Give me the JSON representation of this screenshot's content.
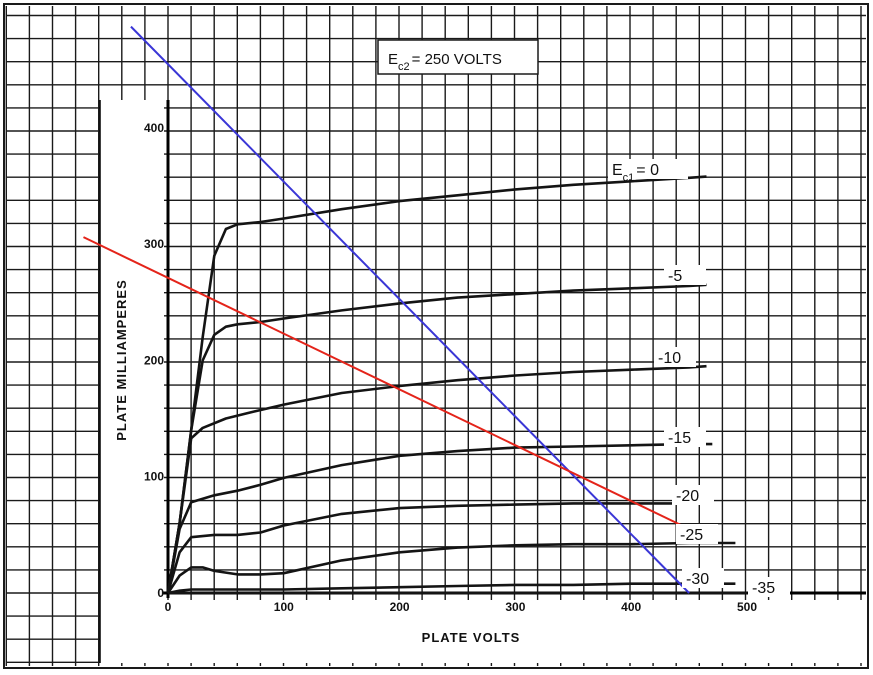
{
  "chart_data": {
    "type": "line",
    "title": "",
    "xlabel": "PLATE VOLTS",
    "ylabel": "PLATE MILLIAMPERES",
    "xlim": [
      0,
      500
    ],
    "ylim": [
      0,
      400
    ],
    "x_ticks": [
      0,
      100,
      200,
      300,
      400,
      500
    ],
    "x_tick_labels": [
      "0",
      "100",
      "200",
      "300",
      "400",
      "500"
    ],
    "y_ticks": [
      0,
      100,
      200,
      300,
      400
    ],
    "y_tick_labels": [
      "0",
      "100",
      "200",
      "300",
      "400"
    ],
    "grid": true,
    "annotation_box": {
      "prefix": "E",
      "subscript": "c2",
      "suffix": "= 250 VOLTS"
    },
    "series": [
      {
        "name": "Ec1 = 0",
        "label_main": "E",
        "label_sub": "c1",
        "label_suffix": "= 0",
        "x": [
          0,
          10,
          20,
          30,
          40,
          50,
          60,
          80,
          100,
          150,
          200,
          250,
          300,
          350,
          400,
          450,
          465
        ],
        "y": [
          0,
          60,
          140,
          220,
          290,
          313,
          317,
          319,
          322,
          330,
          337,
          342,
          347,
          351,
          354,
          357,
          358
        ]
      },
      {
        "name": "-5",
        "label_main": "-5",
        "x": [
          0,
          10,
          20,
          30,
          40,
          50,
          60,
          80,
          100,
          150,
          200,
          250,
          300,
          350,
          400,
          450,
          465
        ],
        "y": [
          0,
          60,
          140,
          200,
          222,
          229,
          231,
          233,
          236,
          243,
          249,
          254,
          257,
          260,
          262,
          264,
          265
        ]
      },
      {
        "name": "-10",
        "label_main": "-10",
        "x": [
          0,
          10,
          20,
          30,
          50,
          70,
          100,
          150,
          200,
          250,
          300,
          350,
          400,
          450,
          465
        ],
        "y": [
          0,
          60,
          133,
          142,
          150,
          155,
          162,
          172,
          178,
          183,
          187,
          190,
          192,
          194,
          195
        ]
      },
      {
        "name": "-15",
        "label_main": "-15",
        "x": [
          0,
          10,
          20,
          40,
          60,
          80,
          100,
          150,
          200,
          250,
          300,
          350,
          400,
          450,
          470
        ],
        "y": [
          0,
          55,
          78,
          84,
          88,
          93,
          99,
          110,
          118,
          122,
          125,
          126,
          127,
          128,
          128
        ]
      },
      {
        "name": "-20",
        "label_main": "-20",
        "x": [
          0,
          10,
          20,
          40,
          60,
          80,
          100,
          150,
          200,
          250,
          300,
          350,
          400,
          450,
          470
        ],
        "y": [
          0,
          35,
          48,
          50,
          50,
          52,
          58,
          68,
          73,
          75,
          76,
          77,
          77,
          77,
          77
        ]
      },
      {
        "name": "-25",
        "label_main": "-25",
        "x": [
          0,
          10,
          20,
          30,
          40,
          60,
          80,
          100,
          150,
          200,
          250,
          300,
          350,
          400,
          450,
          490
        ],
        "y": [
          0,
          15,
          22,
          22,
          19,
          16,
          16,
          17,
          28,
          35,
          39,
          41,
          42,
          42,
          43,
          43
        ]
      },
      {
        "name": "-30",
        "label_main": "-30",
        "x": [
          0,
          10,
          20,
          40,
          60,
          100,
          150,
          200,
          250,
          300,
          350,
          400,
          450,
          490
        ],
        "y": [
          0,
          2,
          3,
          3,
          3,
          3,
          4,
          5,
          6,
          7,
          7,
          8,
          8,
          8
        ]
      },
      {
        "name": "-35",
        "label_main": "-35",
        "x": [
          0,
          100,
          200,
          300,
          400,
          500
        ],
        "y": [
          0,
          0,
          0,
          0,
          0,
          0
        ]
      }
    ],
    "load_lines": [
      {
        "name": "blue-load-line",
        "color": "#3a36d6",
        "x1": -32,
        "y1": 487,
        "x2": 450,
        "y2": 0
      },
      {
        "name": "red-load-line",
        "color": "#e4241a",
        "x1": -73,
        "y1": 306,
        "x2": 448,
        "y2": 56
      }
    ]
  },
  "colors": {
    "grid": "#1a1a1a",
    "curve": "#141414",
    "background": "#ffffff"
  }
}
